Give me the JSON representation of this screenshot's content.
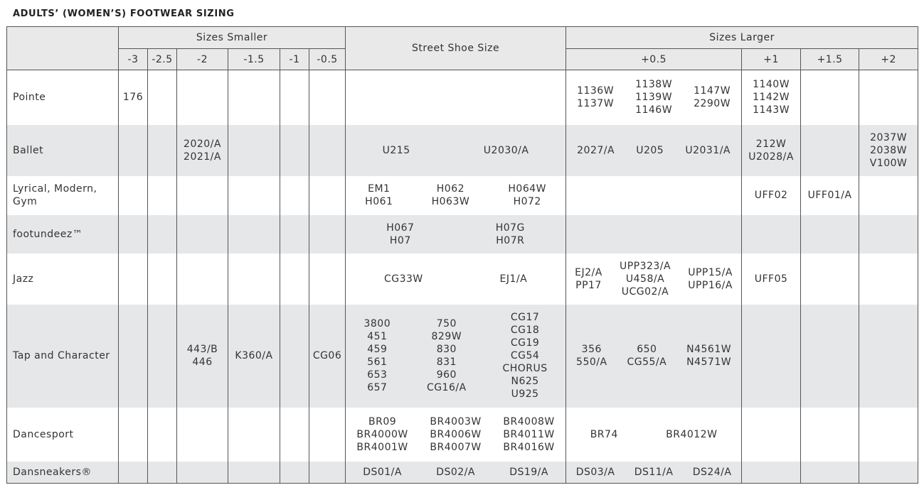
{
  "header": {
    "title": "ADULTS’ (WOMEN’S) FOOTWEAR SIZING"
  },
  "table": {
    "headers": {
      "smaller": "Sizes Smaller",
      "street": "Street Shoe Size",
      "larger": "Sizes Larger"
    },
    "smaller_columns": [
      "-3",
      "-2.5",
      "-2",
      "-1.5",
      "-1",
      "-0.5"
    ],
    "larger_columns": [
      "+0.5",
      "+1",
      "+1.5",
      "+2"
    ],
    "rows": [
      {
        "label": "Pointe",
        "cells": [
          [
            [
              "176"
            ]
          ],
          [],
          [],
          [],
          [],
          [],
          [],
          [
            [
              "1136W",
              "1137W"
            ],
            [
              "1138W",
              "1139W",
              "1146W"
            ],
            [
              "1147W",
              "2290W"
            ]
          ],
          [
            [
              "1140W",
              "1142W",
              "1143W"
            ]
          ],
          [],
          []
        ]
      },
      {
        "label": "Ballet",
        "cells": [
          [],
          [],
          [
            [
              "2020/A",
              "2021/A"
            ]
          ],
          [],
          [],
          [],
          [
            [
              "U215"
            ],
            [
              "U2030/A"
            ]
          ],
          [
            [
              "2027/A"
            ],
            [
              "U205"
            ],
            [
              "U2031/A"
            ]
          ],
          [
            [
              "212W",
              "U2028/A"
            ]
          ],
          [],
          [
            [
              "2037W",
              "2038W",
              "V100W"
            ]
          ]
        ]
      },
      {
        "label": "Lyrical, Modern, Gym",
        "cells": [
          [],
          [],
          [],
          [],
          [],
          [],
          [
            [
              "EM1",
              "H061"
            ],
            [
              "H062",
              "H063W"
            ],
            [
              "H064W",
              "H072"
            ]
          ],
          [],
          [
            [
              "UFF02"
            ]
          ],
          [
            [
              "UFF01/A"
            ]
          ],
          []
        ]
      },
      {
        "label": "footundeez™",
        "cells": [
          [],
          [],
          [],
          [],
          [],
          [],
          [
            [
              "H067",
              "H07"
            ],
            [
              "H07G",
              "H07R"
            ]
          ],
          [],
          [],
          [],
          []
        ]
      },
      {
        "label": "Jazz",
        "cells": [
          [],
          [],
          [],
          [],
          [],
          [],
          [
            [
              "CG33W"
            ],
            [
              "EJ1/A"
            ]
          ],
          [
            [
              "EJ2/A",
              "PP17"
            ],
            [
              "UPP323/A",
              "U458/A",
              "UCG02/A"
            ],
            [
              "UPP15/A",
              "UPP16/A"
            ]
          ],
          [
            [
              "UFF05"
            ]
          ],
          [],
          []
        ]
      },
      {
        "label": "Tap and Character",
        "cells": [
          [],
          [],
          [
            [
              "443/B",
              "446"
            ]
          ],
          [
            [
              "K360/A"
            ]
          ],
          [],
          [
            [
              "CG06"
            ]
          ],
          [
            [
              "3800",
              "451",
              "459",
              "561",
              "653",
              "657"
            ],
            [
              "750",
              "829W",
              "830",
              "831",
              "960",
              "CG16/A"
            ],
            [
              "CG17",
              "CG18",
              "CG19",
              "CG54",
              "CHORUS",
              "N625",
              "U925"
            ]
          ],
          [
            [
              "356",
              "550/A"
            ],
            [
              "650",
              "CG55/A"
            ],
            [
              "N4561W",
              "N4571W"
            ]
          ],
          [],
          [],
          []
        ]
      },
      {
        "label": "Dancesport",
        "cells": [
          [],
          [],
          [],
          [],
          [],
          [],
          [
            [
              "BR09",
              "BR4000W",
              "BR4001W"
            ],
            [
              "BR4003W",
              "BR4006W",
              "BR4007W"
            ],
            [
              "BR4008W",
              "BR4011W",
              "BR4016W"
            ]
          ],
          [
            [
              "BR74"
            ],
            [
              "BR4012W"
            ]
          ],
          [],
          [],
          []
        ]
      },
      {
        "label": "Dansneakers®",
        "cells": [
          [],
          [],
          [],
          [],
          [],
          [],
          [
            [
              "DS01/A"
            ],
            [
              "DS02/A"
            ],
            [
              "DS19/A"
            ]
          ],
          [
            [
              "DS03/A"
            ],
            [
              "DS11/A"
            ],
            [
              "DS24/A"
            ]
          ],
          [],
          [],
          []
        ]
      }
    ]
  }
}
